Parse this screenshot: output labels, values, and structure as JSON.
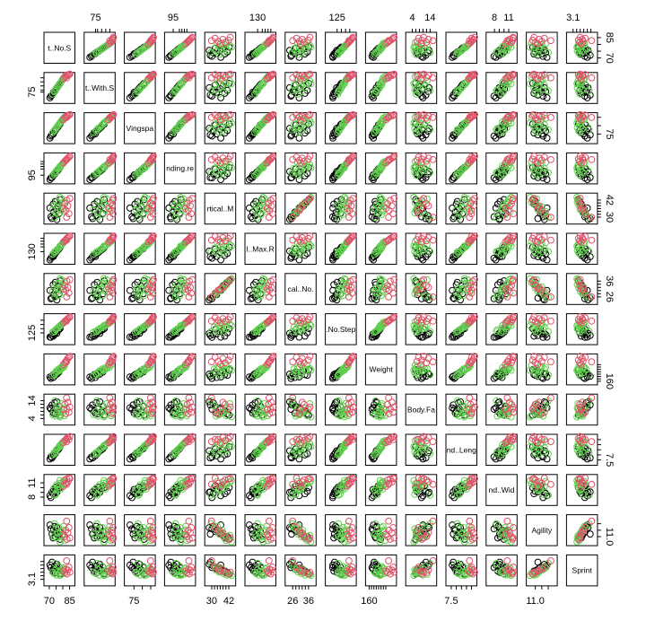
{
  "chart_data": {
    "type": "scatter",
    "title": "",
    "variables": [
      {
        "label": "t..No.S",
        "range": [
          67,
          88
        ],
        "ticks": [
          70,
          75,
          80,
          85
        ]
      },
      {
        "label": "t..With.S",
        "range": [
          70,
          84
        ],
        "ticks": [
          75,
          76,
          78,
          80,
          82
        ]
      },
      {
        "label": "Vingspa",
        "range": [
          70,
          87
        ],
        "ticks": [
          75,
          80,
          85
        ]
      },
      {
        "label": "nding.re",
        "range": [
          89,
          112
        ],
        "ticks": [
          95,
          100,
          102,
          104,
          106
        ]
      },
      {
        "label": "rtical..M",
        "range": [
          26,
          46
        ],
        "ticks": [
          30,
          32,
          34,
          36,
          38,
          40,
          42
        ]
      },
      {
        "label": "l..Max.R",
        "range": [
          118,
          148
        ],
        "ticks": [
          130,
          135,
          138,
          141,
          144
        ]
      },
      {
        "label": "cal..No.",
        "range": [
          22,
          40
        ],
        "ticks": [
          26,
          28,
          30,
          32,
          34,
          36
        ]
      },
      {
        "label": ".No.Step",
        "range": [
          115,
          142
        ],
        "ticks": [
          125,
          129,
          133,
          137
        ]
      },
      {
        "label": "Weight",
        "range": [
          150,
          270
        ],
        "ticks": [
          160,
          170,
          180,
          190,
          200,
          210,
          220,
          230
        ]
      },
      {
        "label": "Body.Fa",
        "range": [
          1,
          17
        ],
        "ticks": [
          4,
          6,
          8,
          10,
          12,
          14
        ]
      },
      {
        "label": "nd..Leng",
        "range": [
          7.1,
          9.9
        ],
        "ticks": [
          7.5,
          8,
          8.5,
          9,
          9.5
        ]
      },
      {
        "label": "nd..Wid",
        "range": [
          6.5,
          12.5
        ],
        "ticks": [
          8,
          9,
          10,
          11
        ]
      },
      {
        "label": "Agility",
        "range": [
          10.4,
          12.6
        ],
        "ticks": [
          11.0,
          11.5,
          12.0
        ]
      },
      {
        "label": "Sprint",
        "range": [
          2.95,
          3.75
        ],
        "ticks": [
          3.1,
          3.2,
          3.3,
          3.4,
          3.5,
          3.6
        ]
      }
    ],
    "tick_labels": {
      "top": [
        {
          "var": 1,
          "text": "75"
        },
        {
          "var": 3,
          "text": "95"
        },
        {
          "var": 5,
          "text": "130"
        },
        {
          "var": 7,
          "text": "125"
        },
        {
          "var": 9,
          "text": "4"
        },
        {
          "var": 9,
          "text": "14"
        },
        {
          "var": 11,
          "text": "8"
        },
        {
          "var": 11,
          "text": "11"
        },
        {
          "var": 13,
          "text": "3.1"
        }
      ],
      "bottom": [
        {
          "var": 0,
          "text": "70"
        },
        {
          "var": 0,
          "text": "85"
        },
        {
          "var": 2,
          "text": "75"
        },
        {
          "var": 4,
          "text": "30"
        },
        {
          "var": 4,
          "text": "42"
        },
        {
          "var": 6,
          "text": "26"
        },
        {
          "var": 6,
          "text": "36"
        },
        {
          "var": 8,
          "text": "160"
        },
        {
          "var": 10,
          "text": "7.5"
        },
        {
          "var": 12,
          "text": "11.0"
        }
      ],
      "left": [
        {
          "var": 1,
          "text": "75"
        },
        {
          "var": 3,
          "text": "95"
        },
        {
          "var": 5,
          "text": "130"
        },
        {
          "var": 7,
          "text": "125"
        },
        {
          "var": 9,
          "text": "4"
        },
        {
          "var": 9,
          "text": "14"
        },
        {
          "var": 11,
          "text": "8"
        },
        {
          "var": 11,
          "text": "11"
        },
        {
          "var": 13,
          "text": "3.1"
        }
      ],
      "right": [
        {
          "var": 0,
          "text": "70"
        },
        {
          "var": 0,
          "text": "85"
        },
        {
          "var": 2,
          "text": "75"
        },
        {
          "var": 4,
          "text": "30"
        },
        {
          "var": 4,
          "text": "42"
        },
        {
          "var": 6,
          "text": "26"
        },
        {
          "var": 6,
          "text": "36"
        },
        {
          "var": 8,
          "text": "160"
        },
        {
          "var": 10,
          "text": "7.5"
        },
        {
          "var": 12,
          "text": "11.0"
        }
      ]
    },
    "groups": [
      {
        "color": "#000000"
      },
      {
        "color": "#DF536B"
      },
      {
        "color": "#61D04F"
      }
    ],
    "observations": [
      {
        "g": 0,
        "v": [
          70.5,
          72.2,
          72.6,
          91.5,
          36.4,
          121.3,
          30.1,
          121.0,
          178,
          10.0,
          7.6,
          8.3,
          11.9,
          3.5
        ]
      },
      {
        "g": 0,
        "v": [
          71.2,
          73.0,
          73.8,
          92.8,
          30.2,
          123.1,
          24.9,
          120.8,
          172,
          9.2,
          7.8,
          7.9,
          11.6,
          3.43
        ]
      },
      {
        "g": 0,
        "v": [
          72.0,
          73.5,
          74.5,
          93.1,
          29.0,
          124.6,
          25.3,
          122.5,
          181,
          11.6,
          7.7,
          9.1,
          11.2,
          3.58
        ]
      },
      {
        "g": 0,
        "v": [
          72.9,
          74.4,
          75.6,
          94.5,
          39.2,
          126.0,
          33.7,
          121.9,
          188,
          8.1,
          8.0,
          8.7,
          10.9,
          3.33
        ]
      },
      {
        "g": 0,
        "v": [
          73.1,
          74.9,
          75.1,
          95.2,
          33.5,
          124.9,
          27.4,
          124.0,
          176,
          7.0,
          7.9,
          9.6,
          11.5,
          3.39
        ]
      },
      {
        "g": 0,
        "v": [
          73.9,
          75.3,
          76.7,
          95.9,
          31.1,
          127.5,
          26.3,
          123.4,
          192,
          12.8,
          8.2,
          8.8,
          11.8,
          3.47
        ]
      },
      {
        "g": 0,
        "v": [
          74.4,
          75.8,
          77.1,
          96.4,
          41.0,
          128.1,
          35.2,
          125.1,
          185,
          6.5,
          8.1,
          9.2,
          11.0,
          3.29
        ]
      },
      {
        "g": 0,
        "v": [
          75.0,
          76.6,
          77.9,
          97.6,
          35.8,
          129.3,
          30.6,
          126.0,
          197,
          9.4,
          8.3,
          10.1,
          11.3,
          3.41
        ]
      },
      {
        "g": 0,
        "v": [
          75.6,
          77.1,
          78.4,
          98.0,
          28.3,
          130.6,
          24.1,
          124.6,
          190,
          13.4,
          8.4,
          9.0,
          11.7,
          3.52
        ]
      },
      {
        "g": 0,
        "v": [
          76.5,
          77.9,
          79.3,
          99.2,
          37.7,
          131.8,
          32.8,
          127.3,
          203,
          7.6,
          8.5,
          9.8,
          11.1,
          3.36
        ]
      },
      {
        "g": 0,
        "v": [
          77.2,
          78.6,
          80.5,
          100.1,
          32.6,
          132.9,
          28.0,
          128.2,
          199,
          10.8,
          8.6,
          10.4,
          11.4,
          3.44
        ]
      },
      {
        "g": 0,
        "v": [
          78.0,
          79.3,
          81.0,
          101.3,
          42.3,
          134.6,
          36.1,
          129.0,
          208,
          5.9,
          8.8,
          10.0,
          10.8,
          3.25
        ]
      },
      {
        "g": 2,
        "v": [
          72.5,
          74.0,
          75.9,
          94.8,
          35.2,
          127.1,
          29.5,
          125.6,
          183,
          6.2,
          8.0,
          9.4,
          11.2,
          3.3
        ]
      },
      {
        "g": 2,
        "v": [
          73.6,
          75.2,
          76.9,
          96.0,
          38.4,
          128.7,
          31.6,
          126.7,
          191,
          7.8,
          8.2,
          9.9,
          11.0,
          3.26
        ]
      },
      {
        "g": 2,
        "v": [
          74.8,
          76.2,
          78.2,
          97.3,
          33.0,
          130.0,
          27.9,
          127.9,
          196,
          5.4,
          8.3,
          8.6,
          11.6,
          3.37
        ]
      },
      {
        "g": 2,
        "v": [
          75.3,
          76.9,
          78.8,
          98.5,
          40.6,
          131.2,
          33.9,
          128.8,
          204,
          9.9,
          8.5,
          10.6,
          10.9,
          3.22
        ]
      },
      {
        "g": 2,
        "v": [
          76.1,
          77.6,
          79.7,
          99.6,
          36.9,
          132.5,
          31.2,
          129.5,
          200,
          6.9,
          8.6,
          9.5,
          11.3,
          3.31
        ]
      },
      {
        "g": 2,
        "v": [
          76.9,
          78.3,
          80.6,
          100.4,
          31.8,
          133.4,
          26.8,
          130.4,
          212,
          11.1,
          8.7,
          10.2,
          11.7,
          3.46
        ]
      },
      {
        "g": 2,
        "v": [
          77.6,
          79.0,
          81.3,
          101.7,
          39.9,
          134.9,
          34.6,
          131.3,
          209,
          8.4,
          8.9,
          10.9,
          11.0,
          3.28
        ]
      },
      {
        "g": 2,
        "v": [
          78.4,
          79.8,
          82.2,
          102.6,
          35.0,
          136.1,
          30.2,
          132.1,
          217,
          6.0,
          9.0,
          9.7,
          11.4,
          3.34
        ]
      },
      {
        "g": 2,
        "v": [
          79.2,
          80.5,
          83.1,
          103.4,
          42.7,
          137.4,
          36.8,
          133.0,
          214,
          12.3,
          9.1,
          11.1,
          11.1,
          3.24
        ]
      },
      {
        "g": 2,
        "v": [
          79.8,
          81.2,
          83.8,
          104.3,
          37.4,
          138.3,
          32.3,
          133.8,
          222,
          7.2,
          9.2,
          10.5,
          11.5,
          3.39
        ]
      },
      {
        "g": 2,
        "v": [
          80.6,
          81.9,
          84.4,
          105.2,
          33.9,
          139.6,
          29.0,
          134.7,
          219,
          9.6,
          9.3,
          11.3,
          11.8,
          3.42
        ]
      },
      {
        "g": 2,
        "v": [
          81.3,
          82.6,
          85.1,
          106.0,
          40.2,
          140.8,
          35.0,
          135.5,
          227,
          5.6,
          9.4,
          10.8,
          10.7,
          3.27
        ]
      },
      {
        "g": 2,
        "v": [
          74.0,
          75.6,
          77.5,
          96.9,
          29.6,
          129.9,
          25.7,
          126.3,
          187,
          13.9,
          8.1,
          8.4,
          12.0,
          3.55
        ]
      },
      {
        "g": 2,
        "v": [
          77.9,
          79.1,
          81.6,
          101.0,
          43.9,
          135.8,
          37.5,
          131.9,
          206,
          4.9,
          8.8,
          11.5,
          10.6,
          3.21
        ]
      },
      {
        "g": 1,
        "v": [
          80.4,
          81.5,
          83.5,
          104.9,
          36.1,
          140.2,
          31.0,
          134.4,
          231,
          8.9,
          9.2,
          10.3,
          11.2,
          3.33
        ]
      },
      {
        "g": 1,
        "v": [
          81.5,
          82.3,
          84.6,
          106.3,
          39.4,
          141.5,
          33.2,
          135.9,
          238,
          11.9,
          9.4,
          11.6,
          11.0,
          3.29
        ]
      },
      {
        "g": 1,
        "v": [
          82.2,
          82.9,
          85.3,
          107.1,
          34.7,
          142.6,
          30.3,
          136.8,
          244,
          6.7,
          9.5,
          10.9,
          11.5,
          3.38
        ]
      },
      {
        "g": 1,
        "v": [
          83.0,
          83.4,
          86.0,
          108.0,
          41.8,
          143.9,
          35.9,
          137.6,
          249,
          9.3,
          9.6,
          11.8,
          10.8,
          3.25
        ]
      },
      {
        "g": 1,
        "v": [
          83.7,
          83.1,
          85.7,
          108.8,
          37.9,
          144.7,
          32.0,
          138.5,
          256,
          13.1,
          9.7,
          11.2,
          11.3,
          3.36
        ]
      },
      {
        "g": 1,
        "v": [
          84.5,
          83.6,
          86.3,
          109.6,
          32.4,
          145.8,
          28.4,
          139.3,
          261,
          7.5,
          9.5,
          12.0,
          11.7,
          3.44
        ]
      },
      {
        "g": 1,
        "v": [
          85.2,
          83.8,
          86.6,
          110.4,
          43.1,
          146.5,
          36.9,
          140.1,
          265,
          10.4,
          9.8,
          11.9,
          10.9,
          3.3
        ]
      },
      {
        "g": 1,
        "v": [
          82.8,
          82.0,
          84.9,
          107.6,
          29.9,
          142.1,
          26.0,
          136.2,
          242,
          15.6,
          9.3,
          10.7,
          12.2,
          3.62
        ]
      }
    ]
  }
}
